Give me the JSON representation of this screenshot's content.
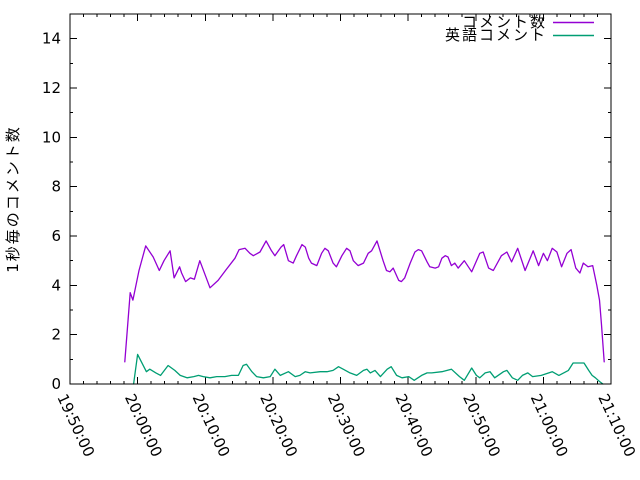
{
  "chart_data": {
    "type": "line",
    "title": "",
    "xlabel": "",
    "ylabel": "1秒毎のコメント数",
    "grid": false,
    "legend_position": "top-right-inside",
    "x_axis": {
      "kind": "time-of-day",
      "range_minutes_from_start": [
        0,
        80
      ],
      "major_tick_every_minutes": 10,
      "minor_tick_every_minutes": 2,
      "tick_labels": [
        "19:50:00",
        "20:00:00",
        "20:10:00",
        "20:20:00",
        "20:30:00",
        "20:40:00",
        "20:50:00",
        "21:00:00",
        "21:10:00"
      ],
      "tick_label_rotation_deg": 65
    },
    "y_axis": {
      "range": [
        0,
        15
      ],
      "major_tick_every": 2,
      "minor_tick_every": 1,
      "tick_labels": [
        "0",
        "2",
        "4",
        "6",
        "8",
        "10",
        "12",
        "14"
      ]
    },
    "series": [
      {
        "name": "コメント数",
        "color": "#9400d3",
        "points": [
          [
            8.1,
            0.9
          ],
          [
            8.9,
            3.7
          ],
          [
            9.3,
            3.4
          ],
          [
            10.2,
            4.6
          ],
          [
            11.2,
            5.6
          ],
          [
            12.3,
            5.15
          ],
          [
            13.2,
            4.6
          ],
          [
            13.9,
            5.0
          ],
          [
            14.8,
            5.4
          ],
          [
            15.4,
            4.3
          ],
          [
            16.2,
            4.75
          ],
          [
            16.5,
            4.5
          ],
          [
            17.1,
            4.15
          ],
          [
            17.8,
            4.3
          ],
          [
            18.4,
            4.25
          ],
          [
            19.2,
            5.0
          ],
          [
            20.7,
            3.9
          ],
          [
            21.9,
            4.2
          ],
          [
            23.0,
            4.6
          ],
          [
            24.4,
            5.1
          ],
          [
            25.0,
            5.45
          ],
          [
            25.9,
            5.5
          ],
          [
            26.6,
            5.3
          ],
          [
            27.1,
            5.2
          ],
          [
            28.1,
            5.35
          ],
          [
            29.0,
            5.8
          ],
          [
            29.8,
            5.4
          ],
          [
            30.3,
            5.2
          ],
          [
            31.2,
            5.55
          ],
          [
            31.6,
            5.65
          ],
          [
            32.3,
            5.0
          ],
          [
            33.0,
            4.9
          ],
          [
            33.5,
            5.2
          ],
          [
            34.3,
            5.65
          ],
          [
            34.8,
            5.55
          ],
          [
            35.3,
            5.1
          ],
          [
            35.7,
            4.9
          ],
          [
            36.5,
            4.8
          ],
          [
            37.2,
            5.3
          ],
          [
            37.7,
            5.5
          ],
          [
            38.2,
            5.4
          ],
          [
            38.9,
            4.9
          ],
          [
            39.4,
            4.75
          ],
          [
            40.2,
            5.2
          ],
          [
            40.9,
            5.5
          ],
          [
            41.4,
            5.4
          ],
          [
            41.9,
            5.0
          ],
          [
            42.6,
            4.8
          ],
          [
            43.4,
            4.9
          ],
          [
            44.1,
            5.3
          ],
          [
            44.6,
            5.4
          ],
          [
            45.4,
            5.8
          ],
          [
            46.3,
            5.0
          ],
          [
            46.8,
            4.6
          ],
          [
            47.3,
            4.55
          ],
          [
            47.8,
            4.7
          ],
          [
            48.6,
            4.2
          ],
          [
            49.0,
            4.15
          ],
          [
            49.5,
            4.3
          ],
          [
            50.3,
            4.9
          ],
          [
            51.0,
            5.35
          ],
          [
            51.5,
            5.45
          ],
          [
            52.0,
            5.4
          ],
          [
            52.8,
            4.95
          ],
          [
            53.2,
            4.75
          ],
          [
            54.0,
            4.7
          ],
          [
            54.5,
            4.75
          ],
          [
            55.0,
            5.1
          ],
          [
            55.5,
            5.2
          ],
          [
            55.9,
            5.15
          ],
          [
            56.4,
            4.8
          ],
          [
            56.9,
            4.9
          ],
          [
            57.4,
            4.7
          ],
          [
            58.3,
            5.0
          ],
          [
            59.4,
            4.55
          ],
          [
            60.6,
            5.3
          ],
          [
            61.1,
            5.35
          ],
          [
            61.9,
            4.7
          ],
          [
            62.6,
            4.6
          ],
          [
            63.8,
            5.2
          ],
          [
            64.6,
            5.35
          ],
          [
            65.3,
            4.95
          ],
          [
            66.2,
            5.5
          ],
          [
            67.3,
            4.6
          ],
          [
            68.5,
            5.4
          ],
          [
            69.3,
            4.8
          ],
          [
            70.0,
            5.3
          ],
          [
            70.6,
            5.0
          ],
          [
            71.3,
            5.5
          ],
          [
            72.0,
            5.35
          ],
          [
            72.7,
            4.75
          ],
          [
            73.5,
            5.3
          ],
          [
            74.1,
            5.45
          ],
          [
            74.8,
            4.7
          ],
          [
            75.4,
            4.5
          ],
          [
            75.9,
            4.9
          ],
          [
            76.6,
            4.75
          ],
          [
            77.3,
            4.8
          ],
          [
            77.9,
            4.0
          ],
          [
            78.3,
            3.4
          ],
          [
            78.6,
            2.4
          ],
          [
            79.0,
            0.9
          ]
        ]
      },
      {
        "name": "英語コメント",
        "color": "#009e73",
        "points": [
          [
            9.4,
            0.0
          ],
          [
            10.0,
            1.2
          ],
          [
            11.3,
            0.5
          ],
          [
            11.8,
            0.6
          ],
          [
            12.7,
            0.45
          ],
          [
            13.4,
            0.35
          ],
          [
            14.5,
            0.75
          ],
          [
            15.5,
            0.55
          ],
          [
            16.3,
            0.35
          ],
          [
            17.3,
            0.25
          ],
          [
            18.3,
            0.3
          ],
          [
            19.0,
            0.35
          ],
          [
            19.7,
            0.3
          ],
          [
            20.7,
            0.25
          ],
          [
            21.7,
            0.3
          ],
          [
            22.9,
            0.3
          ],
          [
            23.9,
            0.35
          ],
          [
            24.9,
            0.35
          ],
          [
            25.6,
            0.75
          ],
          [
            26.1,
            0.8
          ],
          [
            26.9,
            0.5
          ],
          [
            27.6,
            0.3
          ],
          [
            28.6,
            0.25
          ],
          [
            29.6,
            0.3
          ],
          [
            30.3,
            0.6
          ],
          [
            31.1,
            0.35
          ],
          [
            32.3,
            0.5
          ],
          [
            33.3,
            0.3
          ],
          [
            34.0,
            0.35
          ],
          [
            34.8,
            0.5
          ],
          [
            35.5,
            0.45
          ],
          [
            37.0,
            0.5
          ],
          [
            38.0,
            0.5
          ],
          [
            38.9,
            0.55
          ],
          [
            39.7,
            0.7
          ],
          [
            40.4,
            0.6
          ],
          [
            41.4,
            0.45
          ],
          [
            42.4,
            0.35
          ],
          [
            43.4,
            0.55
          ],
          [
            43.9,
            0.6
          ],
          [
            44.4,
            0.45
          ],
          [
            45.1,
            0.55
          ],
          [
            45.9,
            0.3
          ],
          [
            46.9,
            0.6
          ],
          [
            47.5,
            0.7
          ],
          [
            48.3,
            0.35
          ],
          [
            49.1,
            0.25
          ],
          [
            50.1,
            0.3
          ],
          [
            50.9,
            0.15
          ],
          [
            52.0,
            0.35
          ],
          [
            52.8,
            0.45
          ],
          [
            53.5,
            0.45
          ],
          [
            55.0,
            0.5
          ],
          [
            56.4,
            0.6
          ],
          [
            57.6,
            0.3
          ],
          [
            58.3,
            0.15
          ],
          [
            59.4,
            0.65
          ],
          [
            60.1,
            0.35
          ],
          [
            60.6,
            0.25
          ],
          [
            61.4,
            0.45
          ],
          [
            62.1,
            0.5
          ],
          [
            62.8,
            0.25
          ],
          [
            64.1,
            0.5
          ],
          [
            64.6,
            0.55
          ],
          [
            65.4,
            0.25
          ],
          [
            66.2,
            0.15
          ],
          [
            66.9,
            0.35
          ],
          [
            67.7,
            0.45
          ],
          [
            68.4,
            0.3
          ],
          [
            69.7,
            0.35
          ],
          [
            71.3,
            0.5
          ],
          [
            72.3,
            0.35
          ],
          [
            73.7,
            0.55
          ],
          [
            74.4,
            0.85
          ],
          [
            75.2,
            0.85
          ],
          [
            76.0,
            0.85
          ],
          [
            76.7,
            0.55
          ],
          [
            77.2,
            0.35
          ],
          [
            77.7,
            0.25
          ],
          [
            78.3,
            0.1
          ],
          [
            78.8,
            0.0
          ]
        ]
      }
    ]
  }
}
